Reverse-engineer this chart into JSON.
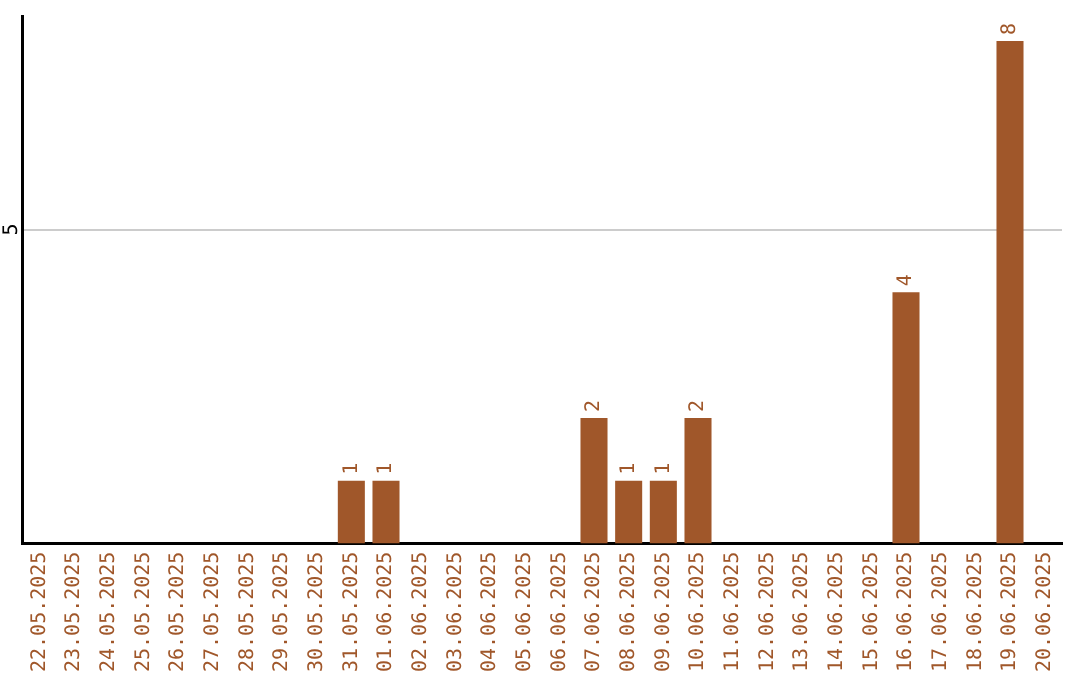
{
  "chart_data": {
    "type": "bar",
    "categories": [
      "22.05.2025",
      "23.05.2025",
      "24.05.2025",
      "25.05.2025",
      "26.05.2025",
      "27.05.2025",
      "28.05.2025",
      "29.05.2025",
      "30.05.2025",
      "31.05.2025",
      "01.06.2025",
      "02.06.2025",
      "03.06.2025",
      "04.06.2025",
      "05.06.2025",
      "06.06.2025",
      "07.06.2025",
      "08.06.2025",
      "09.06.2025",
      "10.06.2025",
      "11.06.2025",
      "12.06.2025",
      "13.06.2025",
      "14.06.2025",
      "15.06.2025",
      "16.06.2025",
      "17.06.2025",
      "18.06.2025",
      "19.06.2025",
      "20.06.2025"
    ],
    "values": [
      0,
      0,
      0,
      0,
      0,
      0,
      0,
      0,
      0,
      1,
      1,
      0,
      0,
      0,
      0,
      0,
      2,
      1,
      1,
      2,
      0,
      0,
      0,
      0,
      0,
      4,
      0,
      0,
      8,
      0
    ],
    "value_labels": [
      null,
      null,
      null,
      null,
      null,
      null,
      null,
      null,
      null,
      "1",
      "1",
      null,
      null,
      null,
      null,
      null,
      "2",
      "1",
      "1",
      "2",
      null,
      null,
      null,
      null,
      null,
      "4",
      null,
      null,
      "8",
      null
    ],
    "color": "#a0572a",
    "ylim": [
      0,
      8.4
    ],
    "yticks": [
      5
    ],
    "grid": "y",
    "legend": false
  }
}
